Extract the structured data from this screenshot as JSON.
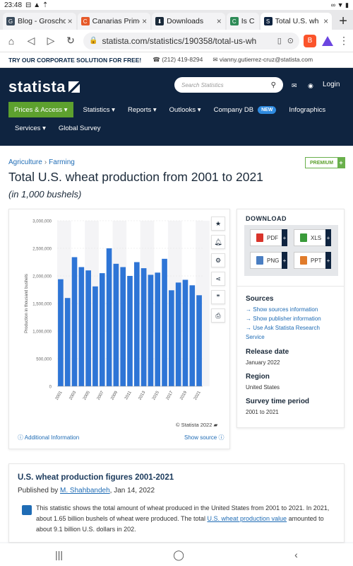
{
  "status": {
    "time": "23:48",
    "icons_left": "⊟ ▲ ⇡",
    "icons_right": "∞ ▼ ▮"
  },
  "tabs": [
    {
      "title": "Blog - Groscho",
      "fav_color": "#3b4b5c",
      "fav_glyph": "G"
    },
    {
      "title": "Canarias Prime",
      "fav_color": "#e65a2a",
      "fav_glyph": "C"
    },
    {
      "title": "Downloads",
      "fav_color": "#1b2a3a",
      "fav_glyph": "⬇"
    },
    {
      "title": "Is C",
      "fav_color": "#2e8b57",
      "fav_glyph": "C"
    },
    {
      "title": "Total U.S. wh",
      "fav_color": "#0f2440",
      "fav_glyph": "S"
    }
  ],
  "url": "statista.com/statistics/190358/total-us-wh",
  "corp": {
    "label": "TRY OUR CORPORATE SOLUTION FOR FREE!",
    "phone": "(212) 419-8294",
    "email": "vianny.gutierrez-cruz@statista.com"
  },
  "header": {
    "logo": "statista",
    "search_placeholder": "Search Statistics",
    "login": "Login",
    "nav1": [
      "Prices & Access",
      "Statistics",
      "Reports",
      "Outlooks",
      "Company DB",
      "Infographics"
    ],
    "new_badge": "NEW",
    "nav2": [
      "Services",
      "Global Survey"
    ]
  },
  "breadcrumb": {
    "a": "Agriculture",
    "b": "Farming"
  },
  "premium": "PREMIUM",
  "title": "Total U.S. wheat production from 2001 to 2021",
  "subtitle": "(in 1,000 bushels)",
  "chart_data": {
    "type": "bar",
    "categories": [
      "2001",
      "2002",
      "2003",
      "2004",
      "2005",
      "2006",
      "2007",
      "2008",
      "2009",
      "2010",
      "2011",
      "2012",
      "2013",
      "2014",
      "2015",
      "2016",
      "2017",
      "2018",
      "2019",
      "2020",
      "2021"
    ],
    "values": [
      1940000,
      1600000,
      2340000,
      2160000,
      2100000,
      1810000,
      2050000,
      2500000,
      2220000,
      2160000,
      2000000,
      2250000,
      2140000,
      2020000,
      2060000,
      2310000,
      1740000,
      1880000,
      1930000,
      1830000,
      1650000
    ],
    "x_tick_labels": [
      "2001",
      "2003",
      "2005",
      "2007",
      "2009",
      "2011",
      "2013",
      "2015",
      "2017",
      "2019",
      "2021"
    ],
    "ylabel": "Production in thousand bushels",
    "yticks": [
      "0",
      "500,000",
      "1,000,000",
      "1,500,000",
      "2,000,000",
      "2,500,000",
      "3,000,000"
    ],
    "ylim": [
      0,
      3000000
    ],
    "bar_color": "#2e75d6",
    "grid": true
  },
  "chart_footer": {
    "copyright": "© Statista 2022",
    "additional": "Additional Information",
    "show_source": "Show source"
  },
  "download": {
    "title": "DOWNLOAD",
    "buttons": [
      "PDF",
      "XLS",
      "PNG",
      "PPT"
    ],
    "plus": "+"
  },
  "sources": {
    "title": "Sources",
    "link1": "Show sources information",
    "link2": "Show publisher information",
    "link3a": "Use Ask Statista Research",
    "link3b": "Service"
  },
  "release": {
    "title": "Release date",
    "value": "January 2022"
  },
  "region": {
    "title": "Region",
    "value": "United States"
  },
  "survey": {
    "title": "Survey time period",
    "value": "2001 to 2021"
  },
  "article": {
    "title": "U.S. wheat production figures 2001-2021",
    "published_by": "Published by",
    "author": "M. Shahbandeh",
    "date": ", Jan 14, 2022",
    "text1": "This statistic shows the total amount of wheat produced in the United States from 2001 to 2021. In 2021, about 1.65 billion bushels of wheat were produced. The total ",
    "link": "U.S. wheat production value",
    "text2": " amounted to about 9.1 billion U.S. dollars in 202."
  },
  "navbar": [
    "|||",
    "◯",
    "‹"
  ]
}
